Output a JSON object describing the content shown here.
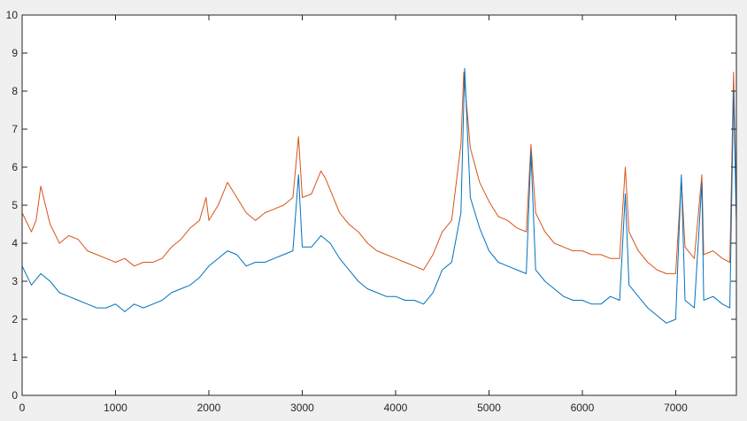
{
  "chart_data": {
    "type": "line",
    "title": "",
    "xlabel": "",
    "ylabel": "",
    "xlim": [
      0,
      7650
    ],
    "ylim": [
      0,
      10
    ],
    "grid": false,
    "legend": "none",
    "x_ticks": [
      0,
      1000,
      2000,
      3000,
      4000,
      5000,
      6000,
      7000
    ],
    "y_ticks": [
      0,
      1,
      2,
      3,
      4,
      5,
      6,
      7,
      8,
      9,
      10
    ],
    "series": [
      {
        "color": "#D95319",
        "x": [
          0,
          100,
          150,
          200,
          300,
          400,
          500,
          600,
          700,
          800,
          900,
          1000,
          1100,
          1200,
          1300,
          1400,
          1500,
          1600,
          1700,
          1800,
          1900,
          1970,
          2000,
          2100,
          2200,
          2300,
          2400,
          2500,
          2600,
          2700,
          2800,
          2900,
          2960,
          3000,
          3100,
          3200,
          3250,
          3300,
          3400,
          3500,
          3600,
          3700,
          3800,
          3900,
          4000,
          4100,
          4200,
          4300,
          4400,
          4500,
          4600,
          4700,
          4730,
          4800,
          4900,
          5000,
          5100,
          5200,
          5300,
          5400,
          5450,
          5500,
          5600,
          5700,
          5800,
          5900,
          6000,
          6100,
          6200,
          6300,
          6400,
          6460,
          6500,
          6600,
          6700,
          6800,
          6900,
          7000,
          7060,
          7100,
          7200,
          7280,
          7300,
          7400,
          7500,
          7580,
          7620,
          7650
        ],
        "y": [
          4.8,
          4.3,
          4.6,
          5.5,
          4.5,
          4.0,
          4.2,
          4.1,
          3.8,
          3.7,
          3.6,
          3.5,
          3.6,
          3.4,
          3.5,
          3.5,
          3.6,
          3.9,
          4.1,
          4.4,
          4.6,
          5.2,
          4.6,
          5.0,
          5.6,
          5.2,
          4.8,
          4.6,
          4.8,
          4.9,
          5.0,
          5.2,
          6.8,
          5.2,
          5.3,
          5.9,
          5.7,
          5.4,
          4.8,
          4.5,
          4.3,
          4.0,
          3.8,
          3.7,
          3.6,
          3.5,
          3.4,
          3.3,
          3.7,
          4.3,
          4.6,
          6.6,
          8.5,
          6.5,
          5.6,
          5.1,
          4.7,
          4.6,
          4.4,
          4.3,
          6.6,
          4.8,
          4.3,
          4.0,
          3.9,
          3.8,
          3.8,
          3.7,
          3.7,
          3.6,
          3.6,
          6.0,
          4.3,
          3.8,
          3.5,
          3.3,
          3.2,
          3.2,
          5.7,
          3.9,
          3.6,
          5.8,
          3.7,
          3.8,
          3.6,
          3.5,
          8.5,
          5.0
        ]
      },
      {
        "color": "#0072BD",
        "x": [
          0,
          100,
          200,
          300,
          400,
          500,
          600,
          700,
          800,
          900,
          1000,
          1100,
          1200,
          1300,
          1400,
          1500,
          1600,
          1700,
          1800,
          1900,
          2000,
          2100,
          2200,
          2300,
          2400,
          2500,
          2600,
          2700,
          2800,
          2900,
          2960,
          3000,
          3100,
          3200,
          3300,
          3400,
          3500,
          3600,
          3700,
          3800,
          3900,
          4000,
          4100,
          4200,
          4300,
          4400,
          4500,
          4600,
          4700,
          4740,
          4800,
          4900,
          5000,
          5100,
          5200,
          5300,
          5400,
          5450,
          5500,
          5600,
          5700,
          5800,
          5900,
          6000,
          6100,
          6200,
          6300,
          6400,
          6460,
          6500,
          6600,
          6700,
          6800,
          6900,
          7000,
          7060,
          7100,
          7200,
          7280,
          7300,
          7400,
          7500,
          7580,
          7620,
          7650
        ],
        "y": [
          3.4,
          2.9,
          3.2,
          3.0,
          2.7,
          2.6,
          2.5,
          2.4,
          2.3,
          2.3,
          2.4,
          2.2,
          2.4,
          2.3,
          2.4,
          2.5,
          2.7,
          2.8,
          2.9,
          3.1,
          3.4,
          3.6,
          3.8,
          3.7,
          3.4,
          3.5,
          3.5,
          3.6,
          3.7,
          3.8,
          5.8,
          3.9,
          3.9,
          4.2,
          4.0,
          3.6,
          3.3,
          3.0,
          2.8,
          2.7,
          2.6,
          2.6,
          2.5,
          2.5,
          2.4,
          2.7,
          3.3,
          3.5,
          4.8,
          8.6,
          5.2,
          4.4,
          3.8,
          3.5,
          3.4,
          3.3,
          3.2,
          6.4,
          3.3,
          3.0,
          2.8,
          2.6,
          2.5,
          2.5,
          2.4,
          2.4,
          2.6,
          2.5,
          5.3,
          2.9,
          2.6,
          2.3,
          2.1,
          1.9,
          2.0,
          5.8,
          2.5,
          2.3,
          5.6,
          2.5,
          2.6,
          2.4,
          2.3,
          8.0,
          4.5
        ]
      }
    ]
  }
}
